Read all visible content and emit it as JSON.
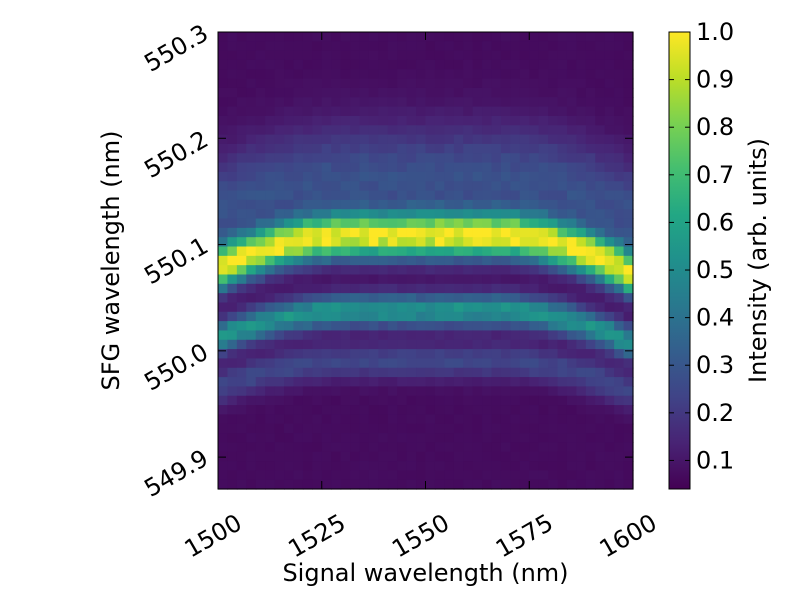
{
  "chart_data": {
    "type": "heatmap",
    "title": "",
    "xlabel": "Signal wavelength (nm)",
    "ylabel": "SFG wavelength (nm)",
    "colorbar_label": "Intensity (arb. units)",
    "colormap": "viridis",
    "xlim": [
      1500,
      1600
    ],
    "ylim": [
      549.87,
      550.3
    ],
    "x_ticks": [
      1500,
      1525,
      1550,
      1575,
      1600
    ],
    "x_tick_labels": [
      "1500",
      "1525",
      "1550",
      "1575",
      "1600"
    ],
    "y_ticks": [
      549.9,
      550.0,
      550.1,
      550.2,
      550.3
    ],
    "y_tick_labels": [
      "549.9",
      "550.0",
      "550.1",
      "550.2",
      "550.3"
    ],
    "colorbar_range": [
      0.04,
      1.0
    ],
    "colorbar_ticks": [
      0.1,
      0.2,
      0.3,
      0.4,
      0.5,
      0.6,
      0.7,
      0.8,
      0.9,
      1.0
    ],
    "colorbar_tick_labels": [
      "0.1",
      "0.2",
      "0.3",
      "0.4",
      "0.5",
      "0.6",
      "0.7",
      "0.8",
      "0.9",
      "1.0"
    ],
    "grid": false,
    "n_signal_bins": 44,
    "n_sfg_bins": 49,
    "main_peak_center_nm": [
      550.077,
      550.108,
      550.108,
      550.071
    ],
    "main_peak_center_at_signal_nm": [
      1500,
      1533,
      1567,
      1600
    ],
    "main_peak_max_intensity": 1.0,
    "secondary_peak_center_nm": [
      550.012,
      550.038,
      550.038,
      550.006
    ],
    "secondary_peak_max_intensity": 0.62,
    "tertiary_peak_center_nm": [
      549.965,
      549.99,
      549.99,
      549.96
    ],
    "tertiary_peak_max_intensity": 0.25,
    "upper_wing_center_nm": 550.15,
    "upper_wing_max_intensity": 0.35,
    "background_intensity": 0.07
  }
}
